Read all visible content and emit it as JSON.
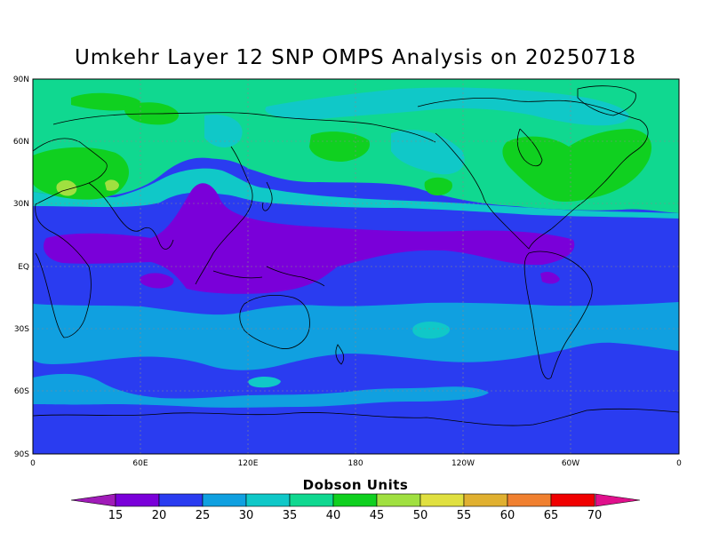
{
  "title": "Umkehr Layer 12 SNP OMPS Analysis on 20250718",
  "map": {
    "lon_ticks": [
      "0",
      "60E",
      "120E",
      "180",
      "120W",
      "60W",
      "0"
    ],
    "lat_ticks": [
      "90N",
      "60N",
      "30N",
      "EQ",
      "30S",
      "60S",
      "90S"
    ],
    "lon_range": [
      0,
      360
    ],
    "lat_range": [
      -90,
      90
    ],
    "grid": true
  },
  "colorbar": {
    "title": "Dobson Units",
    "levels": [
      "15",
      "20",
      "25",
      "30",
      "35",
      "40",
      "45",
      "50",
      "55",
      "60",
      "65",
      "70"
    ],
    "colors": {
      "below_15": "#a01bb8",
      "15_20": "#7a00d9",
      "20_25": "#2a3cf0",
      "25_30": "#10a0e0",
      "30_35": "#10c8c8",
      "35_40": "#10d890",
      "40_45": "#10d020",
      "45_50": "#a0e040",
      "50_55": "#e0e040",
      "55_60": "#e0b030",
      "60_65": "#f08030",
      "65_70": "#f00000",
      "above_70": "#e0108c"
    }
  },
  "field_colors": {
    "band_15_20": "#7a00d9",
    "band_20_25": "#2a3cf0",
    "band_25_30": "#10a0e0",
    "band_30_35": "#10c8c8",
    "band_35_40": "#10d890",
    "band_40_45": "#10d020",
    "band_45_50": "#a0e040"
  }
}
